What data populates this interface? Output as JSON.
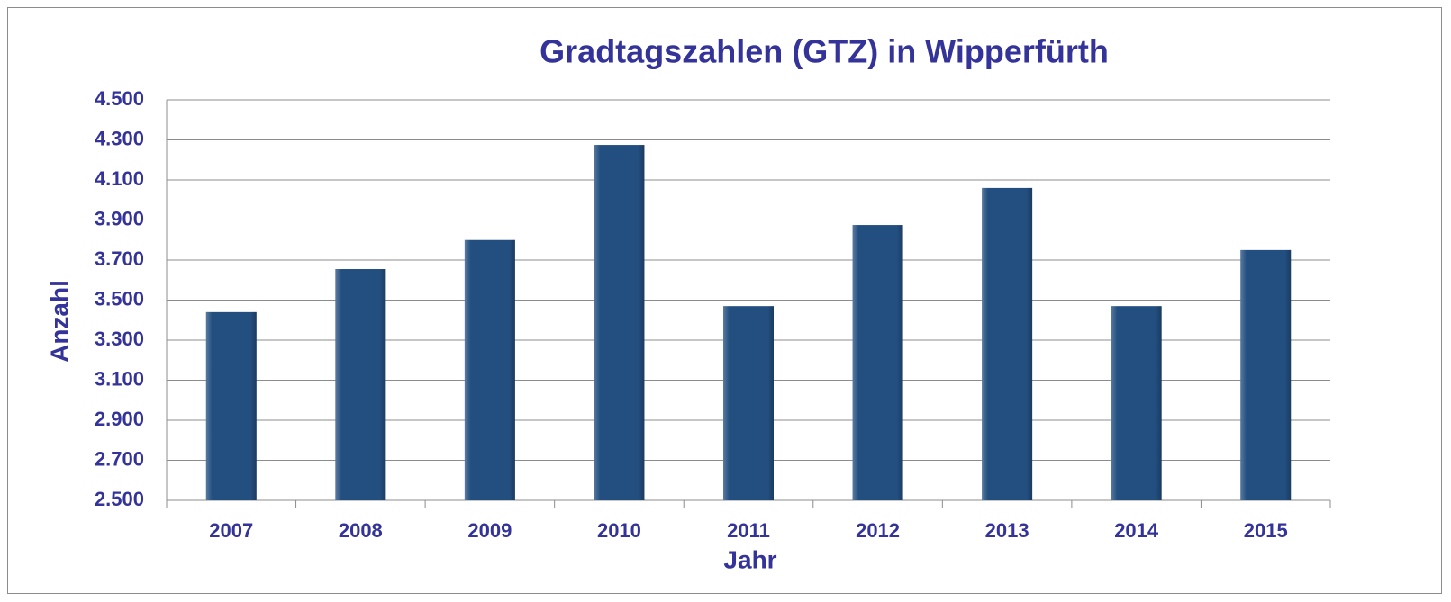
{
  "chart_data": {
    "type": "bar",
    "title": "Gradtagszahlen (GTZ) in Wipperfürth",
    "x_label": "Jahr",
    "y_label": "Anzahl",
    "categories": [
      "2007",
      "2008",
      "2009",
      "2010",
      "2011",
      "2012",
      "2013",
      "2014",
      "2015"
    ],
    "values": [
      3440,
      3655,
      3800,
      4275,
      3470,
      3875,
      4060,
      3470,
      3750
    ],
    "color": "#234f80",
    "ylim": [
      2500,
      4500
    ],
    "yticks": [
      {
        "value": 2500,
        "label": "2.500"
      },
      {
        "value": 2700,
        "label": "2.700"
      },
      {
        "value": 2900,
        "label": "2.900"
      },
      {
        "value": 3100,
        "label": "3.100"
      },
      {
        "value": 3300,
        "label": "3.300"
      },
      {
        "value": 3500,
        "label": "3.500"
      },
      {
        "value": 3700,
        "label": "3.700"
      },
      {
        "value": 3900,
        "label": "3.900"
      },
      {
        "value": 4100,
        "label": "4.100"
      },
      {
        "value": 4300,
        "label": "4.300"
      },
      {
        "value": 4500,
        "label": "4.500"
      }
    ],
    "grid": true
  }
}
